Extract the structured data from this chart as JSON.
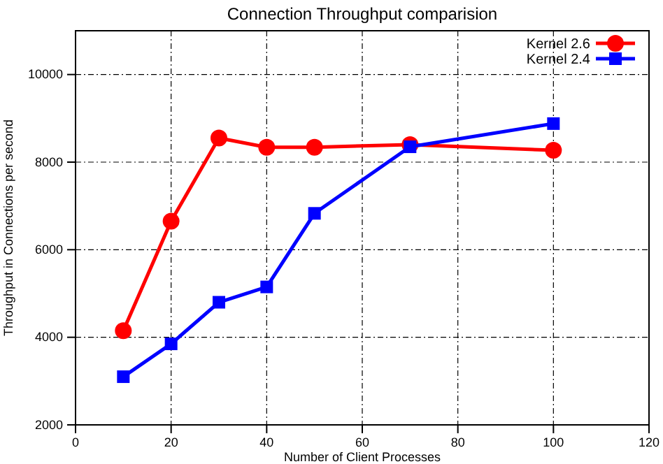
{
  "chart_data": {
    "type": "line",
    "title": "Connection Throughput comparision",
    "xlabel": "Number of Client Processes",
    "ylabel": "Throughput in Connections per second",
    "x": [
      10,
      20,
      30,
      40,
      50,
      70,
      100
    ],
    "series": [
      {
        "name": "Kernel 2.6",
        "color": "#ff0000",
        "marker": "circle",
        "values": [
          4150,
          6650,
          8550,
          8340,
          8340,
          8400,
          8270
        ]
      },
      {
        "name": "Kernel 2.4",
        "color": "#0000ff",
        "marker": "square",
        "values": [
          3100,
          3850,
          4800,
          5150,
          6830,
          8350,
          8880
        ]
      }
    ],
    "xlim": [
      0,
      120
    ],
    "xticks": [
      0,
      20,
      40,
      60,
      80,
      100,
      120
    ],
    "ylim": [
      2000,
      11000
    ],
    "yticks": [
      2000,
      4000,
      6000,
      8000,
      10000
    ],
    "grid": true,
    "legend": "top right",
    "line_style": "solid"
  }
}
